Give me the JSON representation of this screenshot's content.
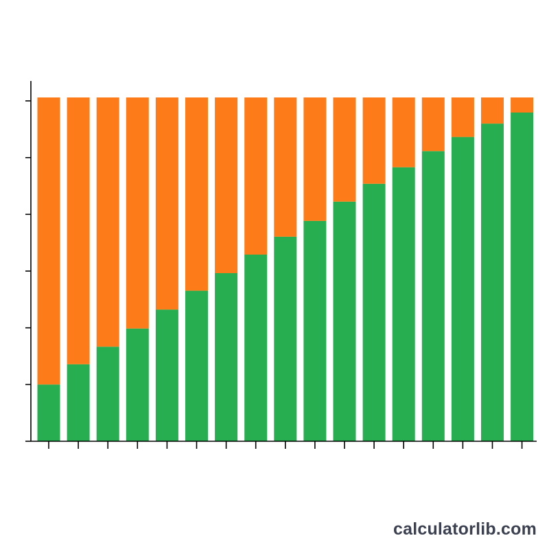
{
  "chart_data": {
    "type": "bar",
    "stacked": true,
    "normalized": true,
    "title": "",
    "xlabel": "",
    "ylabel": "",
    "ylim": [
      0,
      100
    ],
    "categories": [
      "",
      "",
      "",
      "",
      "",
      "",
      "",
      "",
      "",
      "",
      "",
      "",
      "",
      "",
      "",
      "",
      ""
    ],
    "series": [
      {
        "color": "#27ae50",
        "values": [
          16.5,
          22.4,
          27.5,
          32.8,
          38.3,
          43.8,
          48.9,
          54.3,
          59.5,
          64.1,
          69.7,
          74.9,
          79.7,
          84.4,
          88.5,
          92.4,
          95.6
        ]
      },
      {
        "color": "#fd7c19",
        "values": [
          83.5,
          77.6,
          72.5,
          67.2,
          61.7,
          56.2,
          51.1,
          45.7,
          40.5,
          35.9,
          30.3,
          25.1,
          20.3,
          15.6,
          11.5,
          7.6,
          4.4
        ]
      }
    ],
    "grid": false,
    "legend": "none"
  },
  "watermark": "calculatorlib.com"
}
